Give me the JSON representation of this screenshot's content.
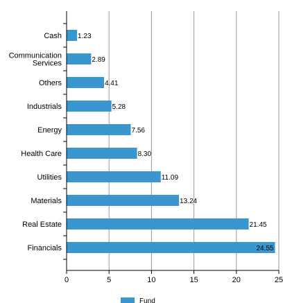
{
  "chart_data": {
    "type": "bar",
    "orientation": "horizontal",
    "categories": [
      "Cash",
      "Communication Services",
      "Others",
      "Industrials",
      "Energy",
      "Health Care",
      "Utilities",
      "Materials",
      "Real Estate",
      "Financials"
    ],
    "category_lines": [
      [
        "Cash"
      ],
      [
        "Communication",
        "Services"
      ],
      [
        "Others"
      ],
      [
        "Industrials"
      ],
      [
        "Energy"
      ],
      [
        "Health Care"
      ],
      [
        "Utilities"
      ],
      [
        "Materials"
      ],
      [
        "Real Estate"
      ],
      [
        "Financials"
      ]
    ],
    "series": [
      {
        "name": "Fund",
        "color": "#3a96cf",
        "values": [
          1.23,
          2.89,
          4.41,
          5.28,
          7.56,
          8.3,
          11.09,
          13.24,
          21.45,
          24.55
        ],
        "value_labels": [
          "1.23",
          "2.89",
          "4.41",
          "5.28",
          "7.56",
          "8.30",
          "11.09",
          "13.24",
          "21.45",
          "24.55"
        ]
      }
    ],
    "xlim": [
      0,
      25
    ],
    "x_ticks": [
      "0",
      "5",
      "10",
      "15",
      "20",
      "25"
    ],
    "grid": "vertical",
    "legend": "bottom-center",
    "title": "",
    "xlabel": "",
    "ylabel": ""
  }
}
